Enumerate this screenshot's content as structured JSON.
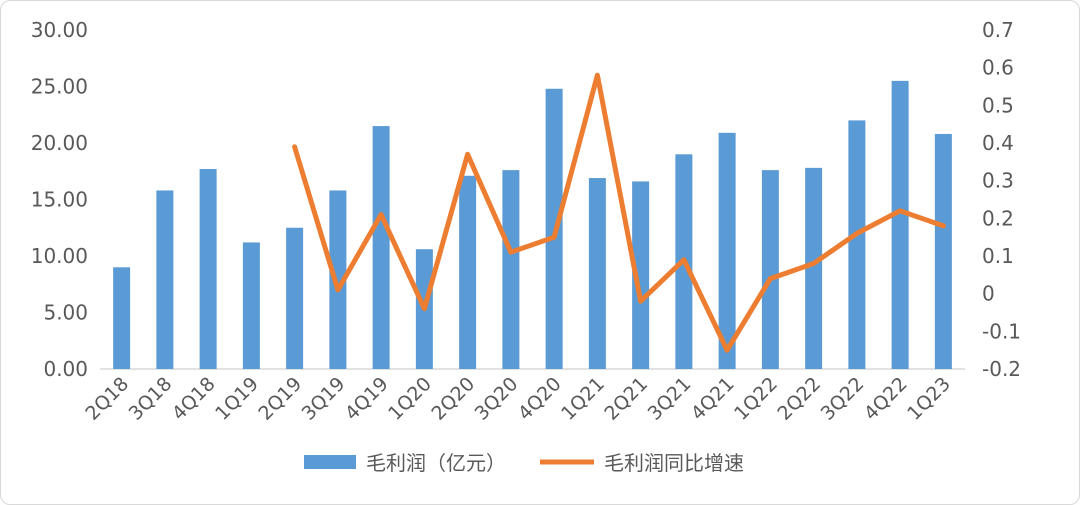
{
  "chart_data": {
    "type": "bar+line",
    "categories": [
      "2Q18",
      "3Q18",
      "4Q18",
      "1Q19",
      "2Q19",
      "3Q19",
      "4Q19",
      "1Q20",
      "2Q20",
      "3Q20",
      "4Q20",
      "1Q21",
      "2Q21",
      "3Q21",
      "4Q21",
      "1Q22",
      "2Q22",
      "3Q22",
      "4Q22",
      "1Q23"
    ],
    "series": [
      {
        "name": "毛利润（亿元）",
        "type": "bar",
        "axis": "left",
        "color": "#5b9bd5",
        "values": [
          9.0,
          15.8,
          17.7,
          11.2,
          12.5,
          15.8,
          21.5,
          10.6,
          17.1,
          17.6,
          24.8,
          16.9,
          16.6,
          19.0,
          20.9,
          17.6,
          17.8,
          22.0,
          25.5,
          20.8
        ]
      },
      {
        "name": "毛利润同比增速",
        "type": "line",
        "axis": "right",
        "color": "#ed7d31",
        "values": [
          null,
          null,
          null,
          null,
          0.39,
          0.01,
          0.21,
          -0.04,
          0.37,
          0.11,
          0.15,
          0.58,
          -0.02,
          0.09,
          -0.15,
          0.04,
          0.08,
          0.16,
          0.22,
          0.18
        ]
      }
    ],
    "left_axis": {
      "ylim": [
        0,
        30
      ],
      "ticks": [
        "0.00",
        "5.00",
        "10.00",
        "15.00",
        "20.00",
        "25.00",
        "30.00"
      ],
      "tick_values": [
        0,
        5,
        10,
        15,
        20,
        25,
        30
      ]
    },
    "right_axis": {
      "ylim": [
        -0.2,
        0.7
      ],
      "ticks": [
        "-0.2",
        "-0.1",
        "0",
        "0.1",
        "0.2",
        "0.3",
        "0.4",
        "0.5",
        "0.6",
        "0.7"
      ],
      "tick_values": [
        -0.2,
        -0.1,
        0,
        0.1,
        0.2,
        0.3,
        0.4,
        0.5,
        0.6,
        0.7
      ]
    },
    "legend": {
      "placement": "bottom",
      "items": [
        "毛利润（亿元）",
        "毛利润同比增速"
      ]
    },
    "grid": false
  }
}
